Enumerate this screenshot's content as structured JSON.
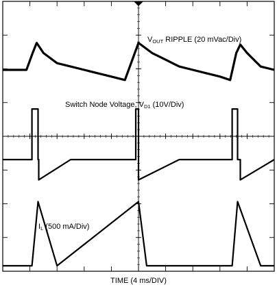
{
  "chart_data": {
    "type": "line",
    "title": "",
    "xlabel": "TIME (4 ms/DIV)",
    "ylabel": "",
    "x_divisions": 10,
    "y_divisions": 8,
    "grid": true,
    "x_units": "ms",
    "x_per_div": 4,
    "x_range": [
      0,
      40
    ],
    "series": [
      {
        "name": "VOUT RIPPLE (20 mVac/Div)",
        "label": {
          "base": "V",
          "sub": "OUT",
          "rest": " RIPPLE  (20 mVac/Div)"
        },
        "units": "mV",
        "x": [
          0,
          2,
          3.5,
          4.4,
          5,
          6,
          8,
          10,
          12,
          14,
          16,
          18,
          20,
          22,
          24,
          26,
          28,
          30,
          32,
          33.5,
          34.4,
          35,
          36,
          38,
          40
        ],
        "values": [
          0,
          0,
          0,
          10,
          16,
          10,
          4,
          2,
          0,
          -2,
          -4,
          -6,
          16,
          10,
          6,
          2,
          0,
          -2,
          -4,
          -6,
          10,
          15,
          10,
          2,
          0
        ]
      },
      {
        "name": "Switch Node Voltage, VD1 (10V/Div)",
        "label": {
          "base": "Switch Node Voltage, V",
          "sub": "D1",
          "rest": " (10V/Div)"
        },
        "units": "V",
        "x": [
          0,
          4.3,
          4.3,
          5.2,
          5.2,
          5.3,
          5.3,
          10,
          19.6,
          19.6,
          20,
          20,
          26,
          33.8,
          33.8,
          34.6,
          34.6,
          35,
          35,
          40
        ],
        "values": [
          0,
          0,
          15,
          15,
          0,
          0,
          -6,
          0,
          0,
          15,
          15,
          -6,
          0,
          0,
          15,
          15,
          0,
          0,
          -6,
          0
        ]
      },
      {
        "name": "IL (500 mA/Div)",
        "label": {
          "base": "I",
          "sub": "L",
          "rest": " (500 mA/Div)"
        },
        "units": "mA",
        "x": [
          0,
          4.3,
          5.2,
          8,
          20,
          21.2,
          24,
          33.8,
          34.6,
          38,
          40
        ],
        "values": [
          0,
          0,
          950,
          0,
          950,
          0,
          0,
          0,
          950,
          0,
          0
        ]
      }
    ]
  }
}
